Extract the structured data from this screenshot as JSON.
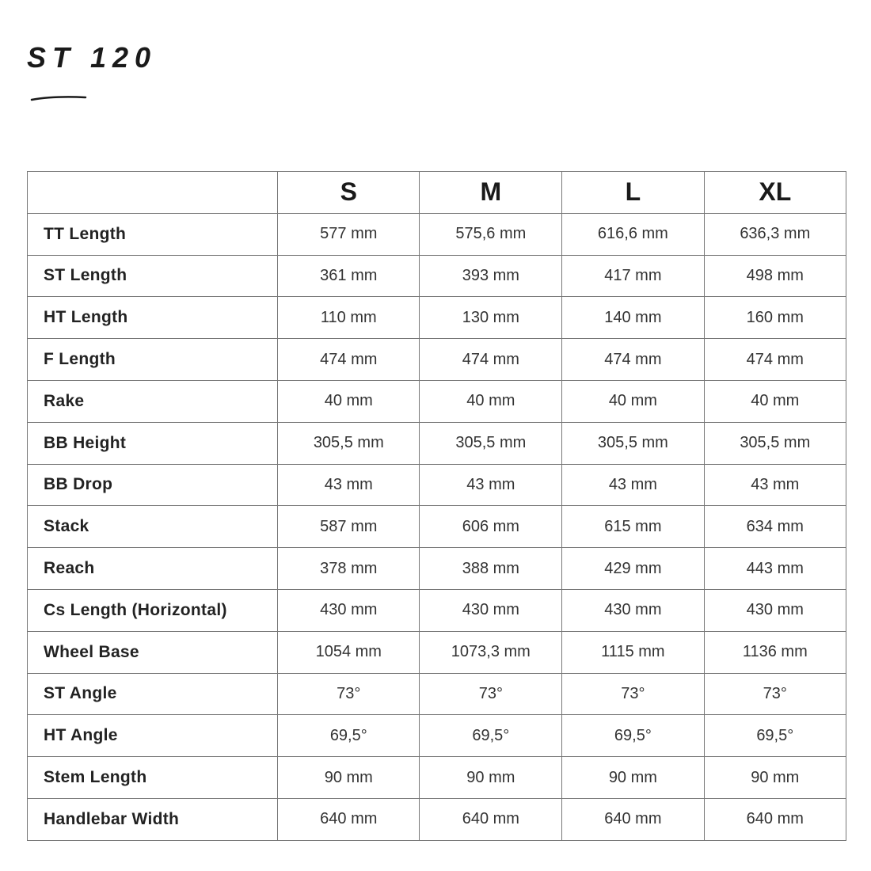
{
  "title": "ST 120",
  "table": {
    "columns": [
      "S",
      "M",
      "L",
      "XL"
    ],
    "rows": [
      {
        "label": "TT Length",
        "values": [
          "577 mm",
          "575,6 mm",
          "616,6 mm",
          "636,3 mm"
        ]
      },
      {
        "label": "ST Length",
        "values": [
          "361 mm",
          "393 mm",
          "417 mm",
          "498 mm"
        ]
      },
      {
        "label": "HT Length",
        "values": [
          "110 mm",
          "130 mm",
          "140 mm",
          "160 mm"
        ]
      },
      {
        "label": "F Length",
        "values": [
          "474 mm",
          "474 mm",
          "474 mm",
          "474 mm"
        ]
      },
      {
        "label": "Rake",
        "values": [
          "40 mm",
          "40 mm",
          "40 mm",
          "40 mm"
        ]
      },
      {
        "label": "BB Height",
        "values": [
          "305,5 mm",
          "305,5 mm",
          "305,5 mm",
          "305,5 mm"
        ]
      },
      {
        "label": "BB Drop",
        "values": [
          "43 mm",
          "43 mm",
          "43 mm",
          "43 mm"
        ]
      },
      {
        "label": "Stack",
        "values": [
          "587 mm",
          "606 mm",
          "615 mm",
          "634 mm"
        ]
      },
      {
        "label": "Reach",
        "values": [
          "378 mm",
          "388 mm",
          "429 mm",
          "443 mm"
        ]
      },
      {
        "label": "Cs Length (Horizontal)",
        "values": [
          "430 mm",
          "430 mm",
          "430 mm",
          "430 mm"
        ]
      },
      {
        "label": "Wheel Base",
        "values": [
          "1054 mm",
          "1073,3 mm",
          "1115 mm",
          "1136 mm"
        ]
      },
      {
        "label": "ST Angle",
        "values": [
          "73°",
          "73°",
          "73°",
          "73°"
        ]
      },
      {
        "label": "HT Angle",
        "values": [
          "69,5°",
          "69,5°",
          "69,5°",
          "69,5°"
        ]
      },
      {
        "label": "Stem Length",
        "values": [
          "90 mm",
          "90 mm",
          "90 mm",
          "90 mm"
        ]
      },
      {
        "label": "Handlebar Width",
        "values": [
          "640 mm",
          "640 mm",
          "640 mm",
          "640 mm"
        ]
      }
    ]
  }
}
